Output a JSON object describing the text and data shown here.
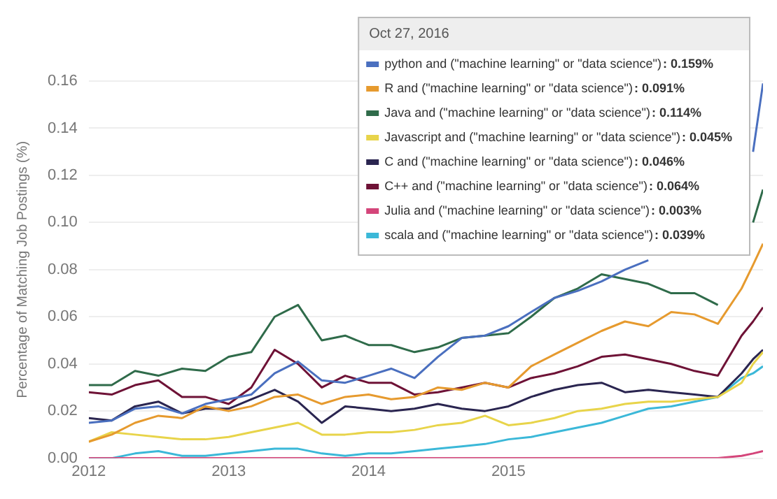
{
  "chart_data": {
    "type": "line",
    "ylabel": "Percentage of Matching Job Postings (%)",
    "x": [
      "2012-01",
      "2012-03",
      "2012-05",
      "2012-07",
      "2012-09",
      "2012-11",
      "2013-01",
      "2013-03",
      "2013-05",
      "2013-07",
      "2013-09",
      "2013-11",
      "2014-01",
      "2014-03",
      "2014-05",
      "2014-07",
      "2014-09",
      "2014-11",
      "2015-01",
      "2015-03",
      "2015-05",
      "2015-07",
      "2015-09",
      "2015-11",
      "2016-01",
      "2016-03",
      "2016-05",
      "2016-07",
      "2016-09",
      "2016-10-01",
      "2016-10-27"
    ],
    "series": [
      {
        "name": "python and (\"machine learning\" or \"data science\")",
        "color": "#4a6fbf",
        "values": [
          0.015,
          0.016,
          0.021,
          0.022,
          0.019,
          0.023,
          0.025,
          0.027,
          0.036,
          0.041,
          0.033,
          0.032,
          0.035,
          0.038,
          0.034,
          0.043,
          0.051,
          0.052,
          0.056,
          0.062,
          0.068,
          0.071,
          0.075,
          0.08,
          0.084,
          null,
          null,
          null,
          null,
          0.13,
          0.159
        ]
      },
      {
        "name": "R and (\"machine learning\" or \"data science\")",
        "color": "#e69a2e",
        "values": [
          0.007,
          0.01,
          0.015,
          0.018,
          0.017,
          0.022,
          0.02,
          0.022,
          0.026,
          0.027,
          0.023,
          0.026,
          0.027,
          0.025,
          0.026,
          0.03,
          0.029,
          0.032,
          0.03,
          0.039,
          0.044,
          0.049,
          0.054,
          0.058,
          0.056,
          0.062,
          0.061,
          0.057,
          0.072,
          0.082,
          0.091
        ]
      },
      {
        "name": "Java and (\"machine learning\" or \"data science\")",
        "color": "#2f6b4a",
        "values": [
          0.031,
          0.031,
          0.037,
          0.035,
          0.038,
          0.037,
          0.043,
          0.045,
          0.06,
          0.065,
          0.05,
          0.052,
          0.048,
          0.048,
          0.045,
          0.047,
          0.051,
          0.052,
          0.053,
          0.06,
          0.068,
          0.072,
          0.078,
          0.076,
          0.074,
          0.07,
          0.07,
          0.065,
          null,
          0.1,
          0.114
        ]
      },
      {
        "name": "Javascript and (\"machine learning\" or \"data science\")",
        "color": "#e8d44a",
        "values": [
          0.007,
          0.011,
          0.01,
          0.009,
          0.008,
          0.008,
          0.009,
          0.011,
          0.013,
          0.015,
          0.01,
          0.01,
          0.011,
          0.011,
          0.012,
          0.014,
          0.015,
          0.018,
          0.014,
          0.015,
          0.017,
          0.02,
          0.021,
          0.023,
          0.024,
          0.024,
          0.025,
          0.026,
          0.032,
          0.04,
          0.045
        ]
      },
      {
        "name": "C and (\"machine learning\" or \"data science\")",
        "color": "#2a2550",
        "values": [
          0.017,
          0.016,
          0.022,
          0.024,
          0.019,
          0.021,
          0.021,
          0.025,
          0.029,
          0.024,
          0.015,
          0.022,
          0.021,
          0.02,
          0.021,
          0.023,
          0.021,
          0.02,
          0.022,
          0.026,
          0.029,
          0.031,
          0.032,
          0.028,
          0.029,
          0.028,
          0.027,
          0.026,
          0.036,
          0.042,
          0.046
        ]
      },
      {
        "name": "C++ and (\"machine learning\" or \"data science\")",
        "color": "#6e1236",
        "values": [
          0.028,
          0.027,
          0.031,
          0.033,
          0.026,
          0.026,
          0.023,
          0.03,
          0.046,
          0.04,
          0.03,
          0.035,
          0.032,
          0.032,
          0.027,
          0.028,
          0.03,
          0.032,
          0.03,
          0.034,
          0.036,
          0.039,
          0.043,
          0.044,
          0.042,
          0.04,
          0.037,
          0.035,
          0.052,
          0.058,
          0.064
        ]
      },
      {
        "name": "Julia and (\"machine learning\" or \"data science\")",
        "color": "#d4457a",
        "values": [
          0,
          0,
          0,
          0,
          0,
          0,
          0,
          0,
          0,
          0,
          0,
          0,
          0,
          0,
          0,
          0,
          0,
          0,
          0,
          0,
          0,
          0,
          0,
          0,
          0,
          0,
          0,
          0,
          0.001,
          0.002,
          0.003
        ]
      },
      {
        "name": "scala and (\"machine learning\" or \"data science\")",
        "color": "#3bb8d8",
        "values": [
          0,
          0,
          0.002,
          0.003,
          0.001,
          0.001,
          0.002,
          0.003,
          0.004,
          0.004,
          0.002,
          0.001,
          0.002,
          0.002,
          0.003,
          0.004,
          0.005,
          0.006,
          0.008,
          0.009,
          0.011,
          0.013,
          0.015,
          0.018,
          0.021,
          0.022,
          0.024,
          0.026,
          0.034,
          0.036,
          0.039
        ]
      }
    ],
    "annotations": [
      "Oct 27, 2016",
      ": 0.159%",
      ": 0.091%",
      ": 0.114%",
      ": 0.045%",
      ": 0.046%",
      ": 0.064%",
      ": 0.003%",
      ": 0.039%"
    ],
    "xlim": [
      "2012-01-01",
      "2016-10-27"
    ],
    "xticks": [
      "2012",
      "2013",
      "2014",
      "2015"
    ],
    "ylim": [
      0,
      0.16
    ],
    "yticks": [
      {
        "value": 0,
        "label": "0.00"
      },
      {
        "value": 0.02,
        "label": "0.02"
      },
      {
        "value": 0.04,
        "label": "0.04"
      },
      {
        "value": 0.06,
        "label": "0.06"
      },
      {
        "value": 0.08,
        "label": "0.08"
      },
      {
        "value": 0.1,
        "label": "0.10"
      },
      {
        "value": 0.12,
        "label": "0.12"
      },
      {
        "value": 0.14,
        "label": "0.14"
      },
      {
        "value": 0.16,
        "label": "0.16"
      }
    ],
    "grid": "y",
    "legend": "top right",
    "marker": "none",
    "line_style": "solid"
  }
}
